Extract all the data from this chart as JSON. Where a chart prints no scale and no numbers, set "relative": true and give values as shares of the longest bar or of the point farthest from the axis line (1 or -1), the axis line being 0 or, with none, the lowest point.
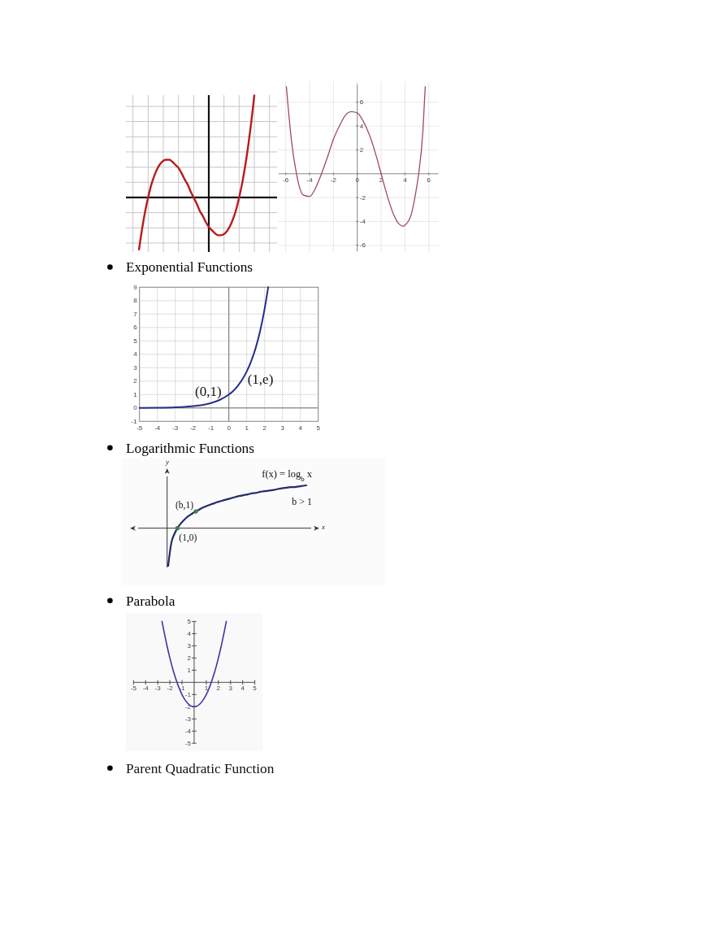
{
  "chart_data": [
    {
      "type": "line",
      "relative": true,
      "grid": true,
      "categories": [
        null,
        null,
        null,
        null,
        null,
        null,
        null,
        null,
        null,
        null,
        null,
        null,
        null,
        null,
        null,
        null,
        null,
        null,
        null,
        null,
        null,
        null,
        null,
        null,
        null,
        null,
        null,
        null,
        null,
        null,
        null,
        null,
        null,
        null,
        null,
        null,
        null,
        null,
        null
      ],
      "series": [
        {
          "color": "#b81c1c",
          "values": [
            -0.51,
            -0.31,
            -0.14,
            0,
            0.12,
            0.21,
            0.28,
            0.33,
            0.36,
            0.37,
            0.37,
            0.35,
            0.32,
            0.29,
            0.24,
            0.18,
            0.13,
            0.06,
            0,
            -0.06,
            -0.13,
            -0.18,
            -0.24,
            -0.29,
            -0.32,
            -0.35,
            -0.37,
            -0.37,
            -0.36,
            -0.33,
            -0.28,
            -0.21,
            -0.12,
            0,
            0.14,
            0.31,
            0.51,
            0.74,
            1
          ]
        }
      ]
    },
    {
      "type": "line",
      "grid": true,
      "x": [
        -5.95,
        -5.5,
        -5.1,
        -5,
        -4.5,
        -4,
        -3.5,
        -3,
        -2.5,
        -2,
        -1.5,
        -1,
        -0.5,
        0,
        0.5,
        1,
        1.5,
        2,
        2.5,
        3,
        3.5,
        3.85,
        4,
        4.5,
        5,
        5.15,
        5.5,
        5.7
      ],
      "series": [
        {
          "color": "#a04c5a",
          "values": [
            7.3,
            2.6,
            0,
            -0.5,
            -1.8,
            -1.9,
            -1.2,
            0,
            1.4,
            2.9,
            4.0,
            4.9,
            5.2,
            5.1,
            4.4,
            3.3,
            1.8,
            0,
            -1.8,
            -3.3,
            -4.2,
            -4.4,
            -4.3,
            -3.5,
            -1.0,
            0,
            3.5,
            7.3
          ]
        }
      ],
      "xlim": [
        -6.6,
        6.8
      ],
      "ylim": [
        -6.5,
        7.5
      ],
      "xticks": [
        -6,
        -4,
        -2,
        0,
        2,
        4,
        6
      ],
      "yticks": [
        -6,
        -4,
        -2,
        2,
        4,
        6
      ]
    },
    {
      "type": "line",
      "title": "Exponential Functions",
      "grid": true,
      "x": [
        -5,
        -4,
        -3,
        -2.5,
        -2,
        -1.5,
        -1,
        -0.5,
        0,
        0.25,
        0.5,
        0.75,
        1,
        1.25,
        1.5,
        1.75,
        2,
        2.2
      ],
      "series": [
        {
          "color": "#272c8e",
          "values": [
            0.01,
            0.02,
            0.05,
            0.08,
            0.14,
            0.22,
            0.37,
            0.61,
            1,
            1.28,
            1.65,
            2.12,
            2.72,
            3.49,
            4.48,
            5.75,
            7.39,
            9
          ]
        }
      ],
      "xlim": [
        -5,
        5
      ],
      "ylim": [
        -1,
        9
      ],
      "xticks": [
        -5,
        -4,
        -3,
        -2,
        -1,
        0,
        1,
        2,
        3,
        4,
        5
      ],
      "yticks": [
        -1,
        0,
        1,
        2,
        3,
        4,
        5,
        6,
        7,
        8,
        9
      ],
      "annotations": [
        {
          "text": "(0,1)",
          "x": 0,
          "y": 1
        },
        {
          "text": "(1,e)",
          "x": 1,
          "y": 2.72
        }
      ]
    },
    {
      "type": "line",
      "title": "Logarithmic Functions",
      "relative": true,
      "xlabel": "x",
      "ylabel": "y",
      "categories": [
        null,
        null,
        null,
        null,
        null,
        null,
        null,
        null,
        null,
        null,
        null,
        null,
        null,
        null,
        null,
        null,
        null,
        null,
        null,
        null,
        null,
        null,
        null,
        null,
        null,
        null,
        null,
        null,
        null,
        null,
        null,
        null,
        null,
        null,
        null,
        null,
        null,
        null,
        null,
        null,
        null,
        null,
        null,
        null,
        null,
        null
      ],
      "series": [
        {
          "name": "f(x) = log$_{b}$ x",
          "color": "#262a6a",
          "values": [
            -0.88,
            -0.35,
            -0.14,
            0,
            0.1,
            0.18,
            0.25,
            0.3,
            0.35,
            0.39,
            0.43,
            0.47,
            0.5,
            0.53,
            0.56,
            0.58,
            0.61,
            0.63,
            0.65,
            0.67,
            0.69,
            0.71,
            0.73,
            0.75,
            0.76,
            0.78,
            0.79,
            0.81,
            0.82,
            0.83,
            0.85,
            0.86,
            0.87,
            0.88,
            0.89,
            0.9,
            0.92,
            0.93,
            0.94,
            0.95,
            0.96,
            0.96,
            0.97,
            0.98,
            0.99,
            1
          ]
        }
      ],
      "annotations": [
        "b > 1",
        "(b,1)",
        "(1,0)"
      ]
    },
    {
      "type": "line",
      "title": "Parabola",
      "x": [
        -2.65,
        -2.5,
        -2.25,
        -2,
        -1.75,
        -1.5,
        -1.25,
        -1,
        -0.75,
        -0.5,
        -0.25,
        0,
        0.25,
        0.5,
        0.75,
        1,
        1.25,
        1.5,
        1.75,
        2,
        2.25,
        2.5,
        2.65
      ],
      "series": [
        {
          "color": "#3b38a0",
          "values": [
            5,
            4.25,
            3.06,
            2,
            1.06,
            0.25,
            -0.44,
            -1,
            -1.44,
            -1.75,
            -1.94,
            -2,
            -1.94,
            -1.75,
            -1.44,
            -1,
            -0.44,
            0.25,
            1.06,
            2,
            3.06,
            4.25,
            5
          ]
        }
      ],
      "xlim": [
        -5,
        5
      ],
      "ylim": [
        -5,
        5
      ],
      "xticks": [
        -5,
        -4,
        -3,
        -2,
        -1,
        1,
        2,
        3,
        4,
        5
      ],
      "yticks": [
        -5,
        -4,
        -3,
        -2,
        -1,
        1,
        2,
        3,
        4,
        5
      ],
      "annotations": [
        "Parent Quadratic Function"
      ]
    }
  ]
}
